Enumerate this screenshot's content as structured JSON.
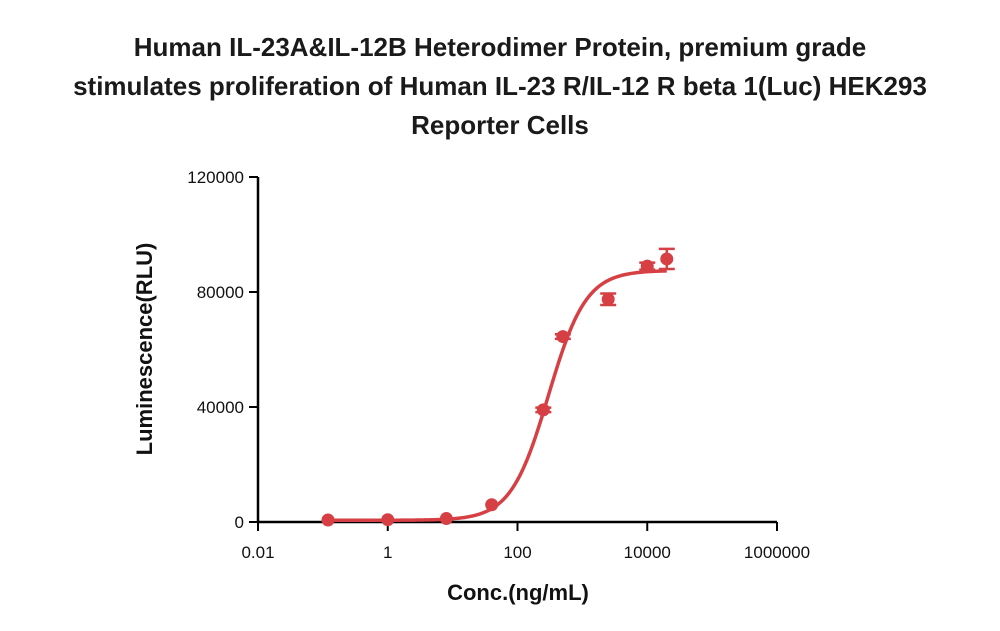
{
  "chart_data": {
    "type": "scatter",
    "title_lines": [
      "Human IL-23A&IL-12B Heterodimer Protein, premium grade",
      "stimulates proliferation of Human IL-23 R/IL-12 R beta 1(Luc) HEK293",
      "Reporter Cells"
    ],
    "xlabel": "Conc.(ng/mL)",
    "ylabel": "Luminescence(RLU)",
    "x_scale": "log10",
    "xlim": [
      0.01,
      1000000
    ],
    "ylim": [
      0,
      120000
    ],
    "x_ticks": [
      0.01,
      1,
      100,
      10000,
      1000000
    ],
    "x_tick_labels": [
      "0.01",
      "1",
      "100",
      "10000",
      "1000000"
    ],
    "y_ticks": [
      0,
      40000,
      80000,
      120000
    ],
    "y_tick_labels": [
      "0",
      "40000",
      "80000",
      "120000"
    ],
    "color": "#d64045",
    "series": [
      {
        "x": [
          0.12,
          1.0,
          8.0,
          40,
          250,
          500,
          2500,
          10000,
          20000
        ],
        "y": [
          700,
          800,
          1200,
          6000,
          39000,
          64500,
          77500,
          89000,
          91500
        ],
        "err": [
          300,
          300,
          300,
          600,
          800,
          800,
          2000,
          1200,
          3500
        ]
      }
    ],
    "fit_curve": {
      "model": "4PL",
      "bottom": 600,
      "top": 87500,
      "ec50": 300,
      "hill": 1.5,
      "x_range": [
        0.12,
        20000
      ]
    }
  }
}
